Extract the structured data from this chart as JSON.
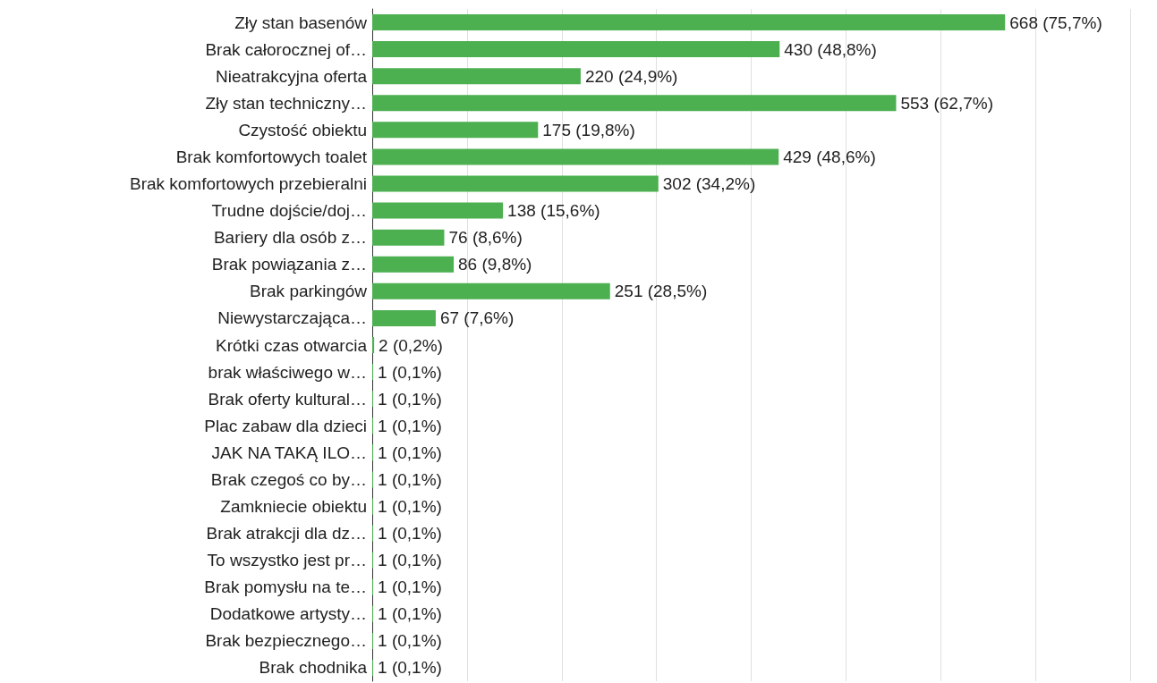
{
  "chart_data": {
    "type": "bar",
    "orientation": "horizontal",
    "categories": [
      "Zły stan basenów",
      "Brak całorocznej of…",
      "Nieatrakcyjna oferta",
      "Zły stan techniczny…",
      "Czystość obiektu",
      "Brak komfortowych toalet",
      "Brak komfortowych przebieralni",
      "Trudne dojście/doj…",
      "Bariery dla osób z…",
      "Brak powiązania z…",
      "Brak parkingów",
      "Niewystarczająca…",
      "Krótki czas otwarcia",
      "brak właściwego w…",
      "Brak oferty kultural…",
      "Plac zabaw dla dzieci",
      "JAK NA TAKĄ ILO…",
      "Brak czegoś co by…",
      "Zamkniecie obiektu",
      "Brak atrakcji dla dz…",
      "To wszystko jest pr…",
      "Brak pomysłu na te…",
      "Dodatkowe artysty…",
      "Brak bezpiecznego…",
      "Brak chodnika"
    ],
    "values": [
      668,
      430,
      220,
      553,
      175,
      429,
      302,
      138,
      76,
      86,
      251,
      67,
      2,
      1,
      1,
      1,
      1,
      1,
      1,
      1,
      1,
      1,
      1,
      1,
      1
    ],
    "value_labels": [
      "668 (75,7%)",
      "430 (48,8%)",
      "220 (24,9%)",
      "553 (62,7%)",
      "175 (19,8%)",
      "429 (48,6%)",
      "302 (34,2%)",
      "138 (15,6%)",
      "76 (8,6%)",
      "86 (9,8%)",
      "251 (28,5%)",
      "67 (7,6%)",
      "2 (0,2%)",
      "1 (0,1%)",
      "1 (0,1%)",
      "1 (0,1%)",
      "1 (0,1%)",
      "1 (0,1%)",
      "1 (0,1%)",
      "1 (0,1%)",
      "1 (0,1%)",
      "1 (0,1%)",
      "1 (0,1%)",
      "1 (0,1%)",
      "1 (0,1%)"
    ],
    "color": "#4caf50",
    "xlim": [
      0,
      800
    ],
    "xticks": [
      {
        "value": 0,
        "label": null
      },
      {
        "value": 100,
        "label": null
      },
      {
        "value": 200,
        "label": null
      },
      {
        "value": 300,
        "label": null
      },
      {
        "value": 400,
        "label": null
      },
      {
        "value": 500,
        "label": null
      },
      {
        "value": 600,
        "label": null
      },
      {
        "value": 700,
        "label": null
      },
      {
        "value": 800,
        "label": null
      }
    ],
    "grid": "x",
    "tick_labels": "y"
  }
}
